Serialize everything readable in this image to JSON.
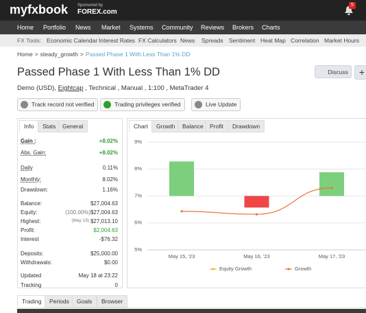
{
  "header": {
    "logo": "myfxbook",
    "sponsor_prefix": "Sponsored by",
    "sponsor": "FOREX.com",
    "notifications": "5"
  },
  "nav": [
    "Home",
    "Portfolio",
    "News",
    "Market",
    "Systems",
    "Community",
    "Reviews",
    "Brokers",
    "Charts"
  ],
  "subnav": {
    "label": "FX Tools:",
    "items": [
      "Economic Calendar",
      "Interest Rates",
      "FX Calculators",
      "News",
      "Spreads",
      "Sentiment",
      "Heat Map",
      "Correlation",
      "Market Hours"
    ]
  },
  "breadcrumb": [
    "Home",
    "steady_growth",
    "Passed Phase 1 With Less Than 1% DD"
  ],
  "title": "Passed Phase 1 With Less Than 1% DD",
  "discuss": "Discuss",
  "info_line": {
    "before": "Demo (USD), ",
    "broker": "Eightcap",
    "after": " , Technical , Manual , 1:100 , MetaTrader 4"
  },
  "badges": [
    "Track record not verified",
    "Trading privileges verified",
    "Live Update"
  ],
  "left_tabs": [
    "Info",
    "Stats",
    "General"
  ],
  "stats": [
    {
      "label": "Gain :",
      "value": "+8.02%"
    },
    {
      "label": "Abs. Gain:",
      "value": "+8.02%"
    },
    {
      "label": "Daily",
      "value": "0.11%"
    },
    {
      "label": "Monthly:",
      "value": "8.02%"
    },
    {
      "label": "Drawdown:",
      "value": "1.16%"
    },
    {
      "label": "Balance:",
      "value": "$27,004.63"
    },
    {
      "label": "Equity:",
      "note": "(100.00%)",
      "value": "$27,004.63"
    },
    {
      "label": "Highest:",
      "note": "(May 19)",
      "value": "$27,013.10"
    },
    {
      "label": "Profit:",
      "value": "$2,004.63"
    },
    {
      "label": "Interest",
      "value": "-$76.32"
    },
    {
      "label": "Deposits:",
      "value": "$25,000.00"
    },
    {
      "label": "Withdrawals:",
      "value": "$0.00"
    },
    {
      "label": "Updated",
      "value": "May 18 at 23:22"
    },
    {
      "label": "Tracking",
      "value": "0"
    }
  ],
  "chart_tabs": [
    "Chart",
    "Growth",
    "Balance",
    "Profit",
    "Drawdown"
  ],
  "chart": {
    "type": "bar",
    "categories": [
      "May 15, '23",
      "May 16, '23",
      "May 17, '23"
    ],
    "bars": {
      "name": "Equity Growth",
      "color": "#f0b429",
      "low": [
        7.0,
        6.57,
        7.0
      ],
      "high": [
        8.28,
        7.0,
        7.88
      ],
      "colors": [
        "#7ccf7c",
        "#f04646",
        "#7ccf7c"
      ]
    },
    "line": {
      "name": "Growth",
      "color": "#e8743b",
      "values": [
        6.43,
        6.32,
        7.3
      ]
    },
    "ylim": [
      5,
      9
    ],
    "yticks": [
      {
        "value": 5,
        "label": "5%"
      },
      {
        "value": 6,
        "label": "6%"
      },
      {
        "value": 7,
        "label": "7%"
      },
      {
        "value": 8,
        "label": "8%"
      },
      {
        "value": 9,
        "label": "9%"
      }
    ]
  },
  "bottom_tabs": [
    "Trading",
    "Periods",
    "Goals",
    "Browser"
  ]
}
